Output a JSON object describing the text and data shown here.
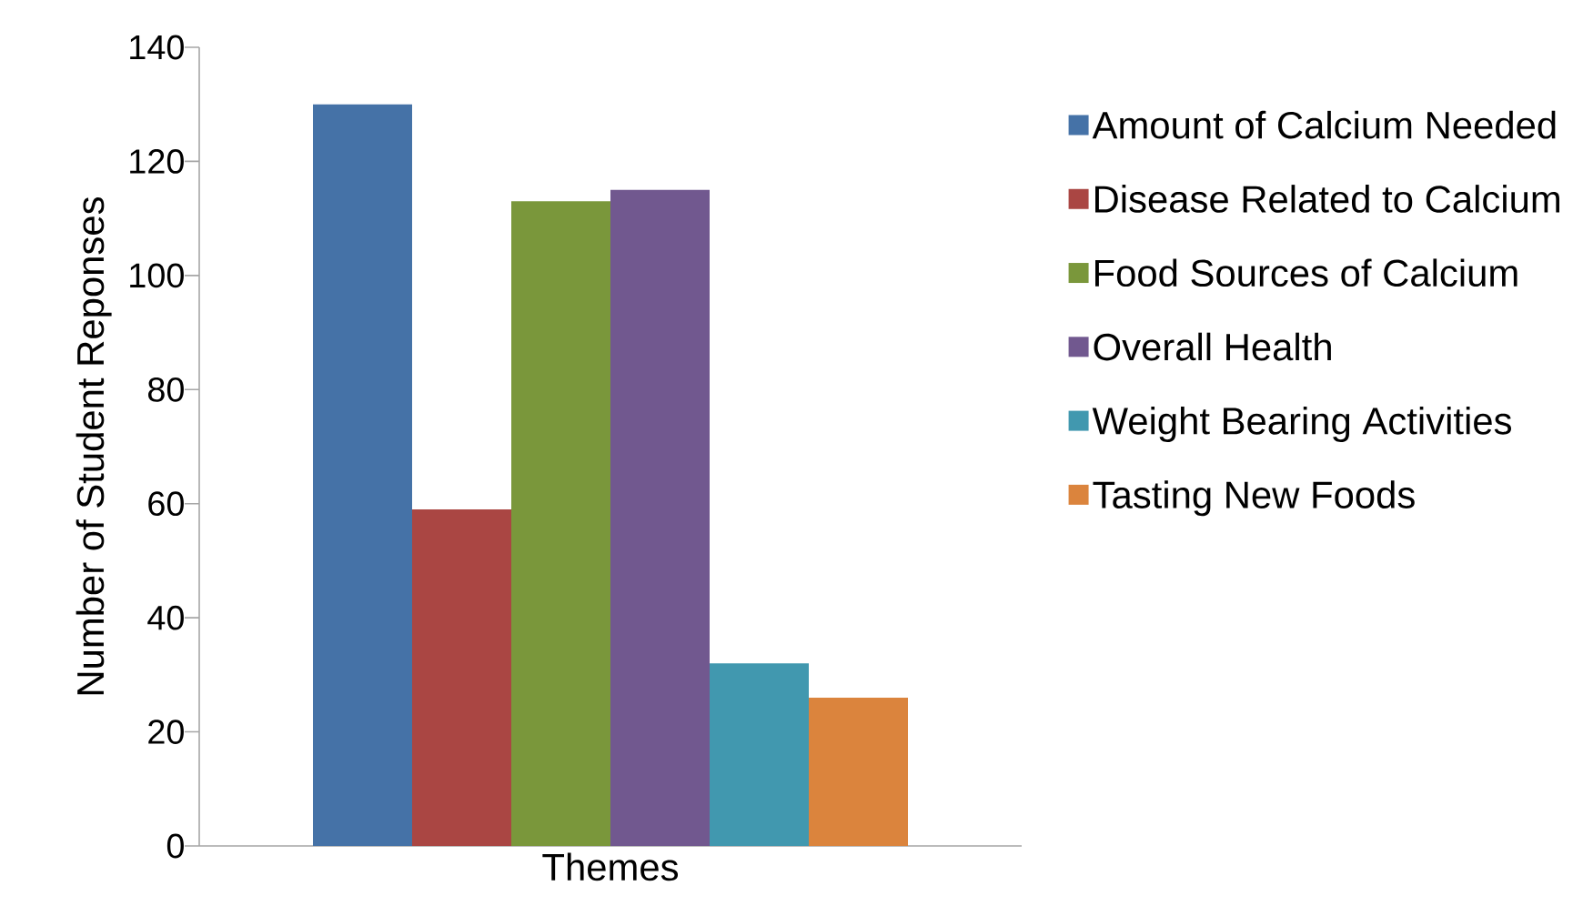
{
  "chart_data": {
    "type": "bar",
    "xlabel": "Themes",
    "ylabel": "Number of Student Reponses",
    "categories": [
      null
    ],
    "series": [
      {
        "name": "Amount of Calcium Needed",
        "color": "#4572a7",
        "values": [
          130
        ]
      },
      {
        "name": "Disease Related to Calcium",
        "color": "#aa4643",
        "values": [
          59
        ]
      },
      {
        "name": "Food Sources of Calcium",
        "color": "#7a973b",
        "values": [
          113
        ]
      },
      {
        "name": "Overall Health",
        "color": "#71588f",
        "values": [
          115
        ]
      },
      {
        "name": "Weight Bearing Activities",
        "color": "#4198af",
        "values": [
          32
        ]
      },
      {
        "name": "Tasting New Foods",
        "color": "#db843d",
        "values": [
          26
        ]
      }
    ],
    "ylim": [
      0,
      140
    ],
    "yticks": [
      0,
      20,
      40,
      60,
      80,
      100,
      120,
      140
    ],
    "legend": "right"
  }
}
